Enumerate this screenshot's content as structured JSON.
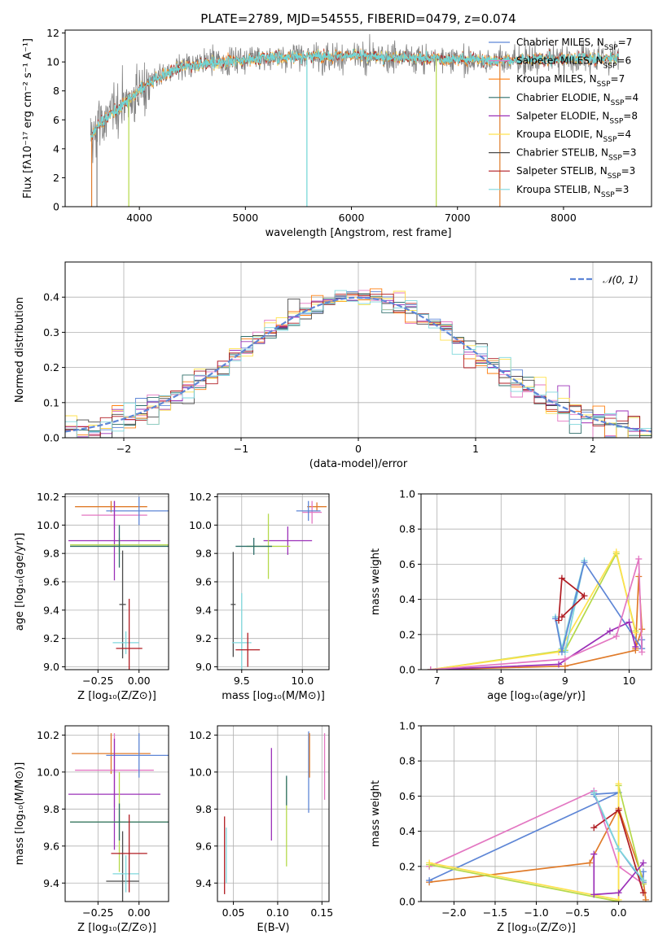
{
  "colors": {
    "chabrier_miles": "#5e86d6",
    "salpeter_miles": "#e377c2",
    "kroupa_miles": "#ff7f0e",
    "chabrier_elodie": "#2f6f6a",
    "salpeter_elodie": "#9b30b8",
    "kroupa_elodie": "#ffe24d",
    "chabrier_stelib": "#4a4a4a",
    "salpeter_stelib": "#b01c22",
    "kroupa_stelib": "#7fd7dc",
    "orange2": "#e07b2a",
    "lime": "#b5d94a",
    "gray": "#808080",
    "cyan": "#6fd6d6"
  },
  "chart_data": [
    {
      "id": "spectrum",
      "type": "line",
      "title": "PLATE=2789, MJD=54555, FIBERID=0479, z=0.074",
      "xlabel": "wavelength [Angstrom, rest frame]",
      "ylabel": "Flux [fλ10⁻¹⁷ erg cm⁻² s⁻¹ A⁻¹]",
      "xlim": [
        3300,
        8830
      ],
      "ylim": [
        0,
        12.2
      ],
      "xticks": [
        4000,
        5000,
        6000,
        7000,
        8000
      ],
      "yticks": [
        0,
        2,
        4,
        6,
        8,
        10,
        12
      ],
      "continuum": {
        "x": [
          3550,
          3600,
          3700,
          3800,
          3900,
          4000,
          4100,
          4200,
          4400,
          4600,
          4800,
          5000,
          5500,
          6000,
          6500,
          7000,
          7400,
          7500,
          8000,
          8500
        ],
        "y": [
          4.8,
          5.5,
          6.2,
          6.8,
          7.4,
          8.0,
          8.6,
          9.0,
          9.6,
          9.9,
          10.0,
          10.2,
          10.4,
          10.4,
          10.3,
          10.2,
          10.1,
          10.1,
          10.2,
          10.3
        ]
      },
      "legend": [
        "Chabrier MILES, N_SSP=7",
        "Salpeter MILES, N_SSP=6",
        "Kroupa MILES, N_SSP=7",
        "Chabrier ELODIE, N_SSP=4",
        "Salpeter ELODIE, N_SSP=8",
        "Kroupa ELODIE, N_SSP=4",
        "Chabrier STELIB, N_SSP=3",
        "Salpeter STELIB, N_SSP=3",
        "Kroupa STELIB, N_SSP=3"
      ],
      "legend_colors": [
        "#5e86d6",
        "#e377c2",
        "#ff7f0e",
        "#2f6f6a",
        "#9b30b8",
        "#ffe24d",
        "#4a4a4a",
        "#b01c22",
        "#7fd7dc"
      ],
      "legend_placement": "right"
    },
    {
      "id": "residuals",
      "type": "area",
      "xlabel": "(data-model)/error",
      "ylabel": "Normed distribution",
      "xlim": [
        -2.5,
        2.5
      ],
      "ylim": [
        0,
        0.5
      ],
      "xticks": [
        -2,
        -1,
        0,
        1,
        2
      ],
      "xtick_labels": [
        "−2",
        "−1",
        "0",
        "1",
        "2"
      ],
      "yticks": [
        0,
        0.1,
        0.2,
        0.3,
        0.4
      ],
      "ytick_labels": [
        "0.0",
        "0.1",
        "0.2",
        "0.3",
        "0.4"
      ],
      "grid": true,
      "legend": [
        "𝒩(0, 1)"
      ],
      "legend_placement": "top-right",
      "bin_width": 0.1
    },
    {
      "id": "age_vs_Z",
      "type": "scatter",
      "xlabel": "Z [log₁₀(Z/Z⊙)]",
      "ylabel": "age  [log₁₀(age/yr)]",
      "xlim": [
        -0.45,
        0.18
      ],
      "ylim": [
        8.98,
        10.22
      ],
      "xticks": [
        -0.25,
        0.0
      ],
      "xtick_labels": [
        "−0.25",
        "0.00"
      ],
      "yticks": [
        9.0,
        9.2,
        9.4,
        9.6,
        9.8,
        10.0,
        10.2
      ],
      "ytick_labels": [
        "9.0",
        "9.2",
        "9.4",
        "9.6",
        "9.8",
        "10.0",
        "10.2"
      ],
      "grid": true,
      "points": [
        {
          "x": -0.17,
          "xerr": 0.22,
          "y": 10.13,
          "yerr": 0.04,
          "c": "#e07b2a"
        },
        {
          "x": -0.15,
          "xerr": 0.2,
          "y": 10.07,
          "yerr": 0.1,
          "c": "#e377c2"
        },
        {
          "x": 0.0,
          "xerr": 0.2,
          "y": 10.1,
          "yerr": 0.1,
          "c": "#5e86d6"
        },
        {
          "x": -0.15,
          "xerr": 0.28,
          "y": 9.89,
          "yerr": 0.28,
          "c": "#9b30b8"
        },
        {
          "x": -0.12,
          "xerr": 0.3,
          "y": 9.86,
          "yerr": 0.05,
          "c": "#b5d94a"
        },
        {
          "x": -0.12,
          "xerr": 0.3,
          "y": 9.85,
          "yerr": 0.15,
          "c": "#2f6f6a"
        },
        {
          "x": -0.1,
          "xerr": 0.02,
          "y": 9.44,
          "yerr": 0.38,
          "c": "#4a4a4a"
        },
        {
          "x": -0.08,
          "xerr": 0.08,
          "y": 9.17,
          "yerr": 0.08,
          "c": "#7fd7dc"
        },
        {
          "x": -0.06,
          "xerr": 0.08,
          "y": 9.13,
          "yerr": 0.35,
          "c": "#b01c22"
        }
      ]
    },
    {
      "id": "age_vs_mass",
      "type": "scatter",
      "xlabel": "mass [log₁₀(M/M⊙)]",
      "ylabel": "",
      "xlim": [
        9.3,
        10.22
      ],
      "ylim": [
        8.98,
        10.22
      ],
      "xticks": [
        9.5,
        10.0
      ],
      "xtick_labels": [
        "9.5",
        "10.0"
      ],
      "yticks": [
        9.0,
        9.2,
        9.4,
        9.6,
        9.8,
        10.0,
        10.2
      ],
      "ytick_labels": [
        "9.0",
        "9.2",
        "9.4",
        "9.6",
        "9.8",
        "10.0",
        "10.2"
      ],
      "grid": true,
      "points": [
        {
          "x": 10.12,
          "xerr": 0.08,
          "y": 10.13,
          "yerr": 0.03,
          "c": "#e07b2a"
        },
        {
          "x": 10.08,
          "xerr": 0.08,
          "y": 10.09,
          "yerr": 0.08,
          "c": "#e377c2"
        },
        {
          "x": 10.05,
          "xerr": 0.1,
          "y": 10.1,
          "yerr": 0.07,
          "c": "#5e86d6"
        },
        {
          "x": 9.88,
          "xerr": 0.2,
          "y": 9.89,
          "yerr": 0.1,
          "c": "#9b30b8"
        },
        {
          "x": 9.72,
          "xerr": 0.18,
          "y": 9.85,
          "yerr": 0.23,
          "c": "#b5d94a"
        },
        {
          "x": 9.6,
          "xerr": 0.15,
          "y": 9.85,
          "yerr": 0.06,
          "c": "#2f6f6a"
        },
        {
          "x": 9.43,
          "xerr": 0.02,
          "y": 9.44,
          "yerr": 0.37,
          "c": "#4a4a4a"
        },
        {
          "x": 9.5,
          "xerr": 0.08,
          "y": 9.17,
          "yerr": 0.35,
          "c": "#7fd7dc"
        },
        {
          "x": 9.55,
          "xerr": 0.1,
          "y": 9.12,
          "yerr": 0.12,
          "c": "#b01c22"
        }
      ]
    },
    {
      "id": "mw_vs_age",
      "type": "line",
      "xlabel": "age  [log₁₀(age/yr)]",
      "ylabel": "mass weight",
      "xlim": [
        6.75,
        10.35
      ],
      "ylim": [
        0,
        1.0
      ],
      "xticks": [
        7,
        8,
        9,
        10
      ],
      "xtick_labels": [
        "7",
        "8",
        "9",
        "10"
      ],
      "yticks": [
        0,
        0.2,
        0.4,
        0.6,
        0.8,
        1.0
      ],
      "ytick_labels": [
        "0.0",
        "0.2",
        "0.4",
        "0.6",
        "0.8",
        "1.0"
      ],
      "grid": true,
      "series": [
        {
          "c": "#e07b2a",
          "x": [
            6.9,
            9.0,
            10.1,
            10.15,
            10.2,
            10.1
          ],
          "y": [
            0.0,
            0.02,
            0.11,
            0.53,
            0.23,
            0.12
          ]
        },
        {
          "c": "#b5d94a",
          "x": [
            6.9,
            9.0,
            9.8,
            10.1
          ],
          "y": [
            0.0,
            0.11,
            0.66,
            0.22
          ]
        },
        {
          "c": "#ffe24d",
          "x": [
            6.9,
            8.9,
            9.8,
            10.1
          ],
          "y": [
            0.0,
            0.1,
            0.67,
            0.21
          ]
        },
        {
          "c": "#7fd7dc",
          "x": [
            8.85,
            8.95,
            9.3,
            9.0
          ],
          "y": [
            0.3,
            0.12,
            0.62,
            0.1
          ]
        },
        {
          "c": "#5e86d6",
          "x": [
            8.85,
            8.95,
            9.3,
            10.2,
            10.2
          ],
          "y": [
            0.29,
            0.1,
            0.61,
            0.12,
            0.17
          ]
        },
        {
          "c": "#b01c22",
          "x": [
            8.9,
            8.95,
            9.3,
            8.95
          ],
          "y": [
            0.28,
            0.52,
            0.42,
            0.3
          ]
        },
        {
          "c": "#9b30b8",
          "x": [
            6.9,
            8.9,
            9.7,
            10.0,
            10.1
          ],
          "y": [
            0.0,
            0.03,
            0.22,
            0.27,
            0.13
          ]
        },
        {
          "c": "#e377c2",
          "x": [
            6.9,
            9.0,
            9.8,
            10.15,
            10.2
          ],
          "y": [
            0.0,
            0.06,
            0.19,
            0.63,
            0.1
          ]
        }
      ]
    },
    {
      "id": "mass_vs_Z",
      "type": "scatter",
      "xlabel": "Z [log₁₀(Z/Z⊙)]",
      "ylabel": "mass [log₁₀(M/M⊙)]",
      "xlim": [
        -0.45,
        0.18
      ],
      "ylim": [
        9.3,
        10.25
      ],
      "xticks": [
        -0.25,
        0.0
      ],
      "xtick_labels": [
        "−0.25",
        "0.00"
      ],
      "yticks": [
        9.4,
        9.6,
        9.8,
        10.0,
        10.2
      ],
      "ytick_labels": [
        "9.4",
        "9.6",
        "9.8",
        "10.0",
        "10.2"
      ],
      "grid": true,
      "points": [
        {
          "x": -0.17,
          "xerr": 0.24,
          "y": 10.1,
          "yerr": 0.11,
          "c": "#e07b2a"
        },
        {
          "x": -0.15,
          "xerr": 0.24,
          "y": 10.01,
          "yerr": 0.2,
          "c": "#e377c2"
        },
        {
          "x": 0.0,
          "xerr": 0.2,
          "y": 10.09,
          "yerr": 0.12,
          "c": "#5e86d6"
        },
        {
          "x": -0.15,
          "xerr": 0.28,
          "y": 9.88,
          "yerr": 0.3,
          "c": "#9b30b8"
        },
        {
          "x": -0.12,
          "xerr": 0.3,
          "y": 9.73,
          "yerr": 0.27,
          "c": "#b5d94a"
        },
        {
          "x": -0.12,
          "xerr": 0.3,
          "y": 9.73,
          "yerr": 0.1,
          "c": "#2f6f6a"
        },
        {
          "x": -0.1,
          "xerr": 0.1,
          "y": 9.41,
          "yerr": 0.27,
          "c": "#4a4a4a"
        },
        {
          "x": -0.08,
          "xerr": 0.08,
          "y": 9.45,
          "yerr": 0.1,
          "c": "#7fd7dc"
        },
        {
          "x": -0.06,
          "xerr": 0.11,
          "y": 9.56,
          "yerr": 0.21,
          "c": "#b01c22"
        }
      ]
    },
    {
      "id": "mass_vs_ebv",
      "type": "scatter",
      "xlabel": "E(B-V)",
      "ylabel": "",
      "xlim": [
        0.032,
        0.158
      ],
      "ylim": [
        9.3,
        10.25
      ],
      "xticks": [
        0.05,
        0.1,
        0.15
      ],
      "xtick_labels": [
        "0.05",
        "0.10",
        "0.15"
      ],
      "yticks": [
        9.4,
        9.6,
        9.8,
        10.0,
        10.2
      ],
      "ytick_labels": [
        "9.4",
        "9.6",
        "9.8",
        "10.0",
        "10.2"
      ],
      "grid": true,
      "points": [
        {
          "x": 0.04,
          "y": 9.55,
          "yerr": 0.21,
          "c": "#b01c22"
        },
        {
          "x": 0.042,
          "y": 9.55,
          "yerr": 0.15,
          "c": "#7fd7dc"
        },
        {
          "x": 0.093,
          "y": 9.88,
          "yerr": 0.25,
          "c": "#9b30b8"
        },
        {
          "x": 0.11,
          "y": 9.73,
          "yerr": 0.24,
          "c": "#b5d94a"
        },
        {
          "x": 0.11,
          "y": 9.9,
          "yerr": 0.08,
          "c": "#2f6f6a"
        },
        {
          "x": 0.135,
          "y": 10.0,
          "yerr": 0.22,
          "c": "#5e86d6"
        },
        {
          "x": 0.136,
          "y": 10.09,
          "yerr": 0.12,
          "c": "#e07b2a"
        },
        {
          "x": 0.153,
          "y": 10.03,
          "yerr": 0.18,
          "c": "#e377c2"
        }
      ]
    },
    {
      "id": "mw_vs_Z",
      "type": "line",
      "xlabel": "Z [log₁₀(Z/Z⊙)]",
      "ylabel": "mass weight",
      "xlim": [
        -2.4,
        0.4
      ],
      "ylim": [
        0,
        1.0
      ],
      "xticks": [
        -2.0,
        -1.5,
        -1.0,
        -0.5,
        0.0
      ],
      "xtick_labels": [
        "−2.0",
        "−1.5",
        "−1.0",
        "−0.5",
        "0.0"
      ],
      "yticks": [
        0,
        0.2,
        0.4,
        0.6,
        0.8,
        1.0
      ],
      "ytick_labels": [
        "0.0",
        "0.2",
        "0.4",
        "0.6",
        "0.8",
        "1.0"
      ],
      "grid": true,
      "series": [
        {
          "c": "#e07b2a",
          "x": [
            -2.3,
            -0.35,
            0.0,
            0.3,
            0.33
          ],
          "y": [
            0.11,
            0.22,
            0.53,
            0.12,
            0.01
          ]
        },
        {
          "c": "#5e86d6",
          "x": [
            -2.3,
            0.0,
            -0.3,
            0.0,
            0.3,
            0.3
          ],
          "y": [
            0.12,
            0.62,
            0.61,
            0.3,
            0.11,
            0.17
          ]
        },
        {
          "c": "#e377c2",
          "x": [
            -2.3,
            -0.3,
            0.0,
            0.3
          ],
          "y": [
            0.2,
            0.63,
            0.2,
            0.1
          ]
        },
        {
          "c": "#b5d94a",
          "x": [
            -2.3,
            0.0,
            0.0,
            0.3
          ],
          "y": [
            0.21,
            0.0,
            0.66,
            0.1
          ]
        },
        {
          "c": "#ffe24d",
          "x": [
            -2.3,
            0.0,
            0.0
          ],
          "y": [
            0.22,
            0.01,
            0.67
          ]
        },
        {
          "c": "#9b30b8",
          "x": [
            -0.3,
            -0.3,
            0.0,
            0.3
          ],
          "y": [
            0.27,
            0.04,
            0.05,
            0.22
          ]
        },
        {
          "c": "#b01c22",
          "x": [
            -0.3,
            0.0,
            0.3
          ],
          "y": [
            0.42,
            0.52,
            0.05
          ]
        },
        {
          "c": "#7fd7dc",
          "x": [
            -0.3,
            0.0,
            0.3
          ],
          "y": [
            0.62,
            0.3,
            0.12
          ]
        }
      ]
    }
  ]
}
